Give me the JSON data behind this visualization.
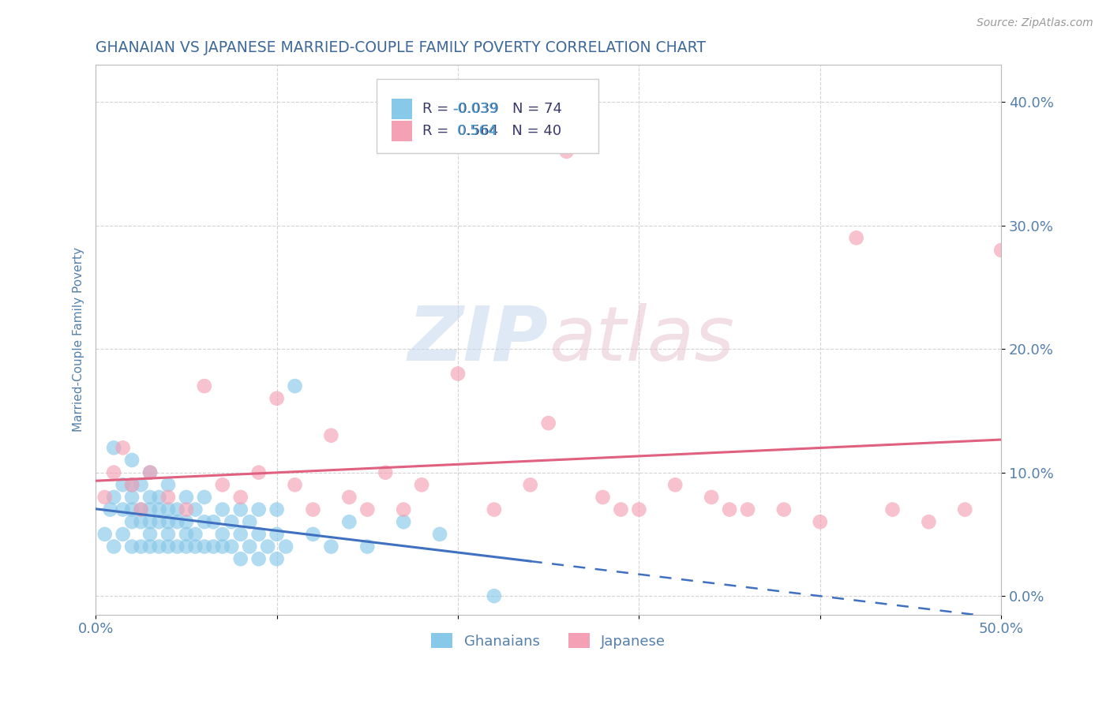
{
  "title": "GHANAIAN VS JAPANESE MARRIED-COUPLE FAMILY POVERTY CORRELATION CHART",
  "source": "Source: ZipAtlas.com",
  "ylabel": "Married-Couple Family Poverty",
  "xlim": [
    0.0,
    0.5
  ],
  "ylim": [
    -0.015,
    0.43
  ],
  "yticks": [
    0.0,
    0.1,
    0.2,
    0.3,
    0.4
  ],
  "ytick_labels": [
    "0.0%",
    "10.0%",
    "20.0%",
    "30.0%",
    "40.0%"
  ],
  "xticks": [
    0.0,
    0.1,
    0.2,
    0.3,
    0.4,
    0.5
  ],
  "xtick_labels": [
    "0.0%",
    "",
    "",
    "",
    "",
    "50.0%"
  ],
  "ghanaian_color": "#88c8e8",
  "japanese_color": "#f4a0b5",
  "ghanaian_R": -0.039,
  "ghanaian_N": 74,
  "japanese_R": 0.564,
  "japanese_N": 40,
  "watermark": "ZIPatlas",
  "title_color": "#3d6899",
  "axis_label_color": "#5580aa",
  "tick_color": "#5580aa",
  "legend_r_color_blue": "#4a9fd4",
  "legend_r_color_pink": "#e8748a",
  "legend_text_color": "#3a3a6a",
  "background_color": "#ffffff",
  "grid_color": "#c8c8c8",
  "blue_line_color": "#4070c0",
  "pink_line_color": "#e06080",
  "ghanaian_x": [
    0.005,
    0.008,
    0.01,
    0.01,
    0.01,
    0.015,
    0.015,
    0.015,
    0.02,
    0.02,
    0.02,
    0.02,
    0.02,
    0.02,
    0.025,
    0.025,
    0.025,
    0.025,
    0.03,
    0.03,
    0.03,
    0.03,
    0.03,
    0.03,
    0.035,
    0.035,
    0.035,
    0.035,
    0.04,
    0.04,
    0.04,
    0.04,
    0.04,
    0.045,
    0.045,
    0.045,
    0.05,
    0.05,
    0.05,
    0.05,
    0.055,
    0.055,
    0.055,
    0.06,
    0.06,
    0.06,
    0.065,
    0.065,
    0.07,
    0.07,
    0.07,
    0.075,
    0.075,
    0.08,
    0.08,
    0.08,
    0.085,
    0.085,
    0.09,
    0.09,
    0.09,
    0.095,
    0.1,
    0.1,
    0.1,
    0.105,
    0.11,
    0.12,
    0.13,
    0.14,
    0.15,
    0.17,
    0.19,
    0.22
  ],
  "ghanaian_y": [
    0.05,
    0.07,
    0.04,
    0.08,
    0.12,
    0.05,
    0.07,
    0.09,
    0.04,
    0.06,
    0.07,
    0.08,
    0.09,
    0.11,
    0.04,
    0.06,
    0.07,
    0.09,
    0.04,
    0.05,
    0.06,
    0.07,
    0.08,
    0.1,
    0.04,
    0.06,
    0.07,
    0.08,
    0.04,
    0.05,
    0.06,
    0.07,
    0.09,
    0.04,
    0.06,
    0.07,
    0.04,
    0.05,
    0.06,
    0.08,
    0.04,
    0.05,
    0.07,
    0.04,
    0.06,
    0.08,
    0.04,
    0.06,
    0.04,
    0.05,
    0.07,
    0.04,
    0.06,
    0.03,
    0.05,
    0.07,
    0.04,
    0.06,
    0.03,
    0.05,
    0.07,
    0.04,
    0.03,
    0.05,
    0.07,
    0.04,
    0.17,
    0.05,
    0.04,
    0.06,
    0.04,
    0.06,
    0.05,
    0.0
  ],
  "japanese_x": [
    0.005,
    0.01,
    0.015,
    0.02,
    0.025,
    0.03,
    0.04,
    0.05,
    0.06,
    0.07,
    0.08,
    0.09,
    0.1,
    0.11,
    0.12,
    0.13,
    0.14,
    0.15,
    0.16,
    0.18,
    0.2,
    0.22,
    0.24,
    0.26,
    0.28,
    0.3,
    0.32,
    0.34,
    0.36,
    0.38,
    0.4,
    0.42,
    0.44,
    0.46,
    0.48,
    0.5,
    0.25,
    0.35,
    0.17,
    0.29
  ],
  "japanese_y": [
    0.08,
    0.1,
    0.12,
    0.09,
    0.07,
    0.1,
    0.08,
    0.07,
    0.17,
    0.09,
    0.08,
    0.1,
    0.16,
    0.09,
    0.07,
    0.13,
    0.08,
    0.07,
    0.1,
    0.09,
    0.18,
    0.07,
    0.09,
    0.36,
    0.08,
    0.07,
    0.09,
    0.08,
    0.07,
    0.07,
    0.06,
    0.29,
    0.07,
    0.06,
    0.07,
    0.28,
    0.14,
    0.07,
    0.07,
    0.07
  ]
}
